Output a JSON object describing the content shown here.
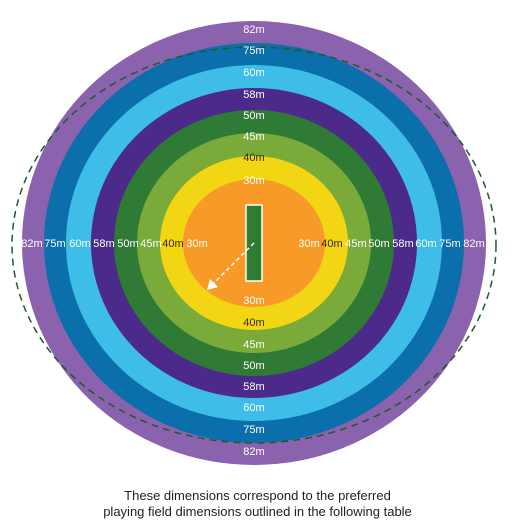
{
  "diagram": {
    "rings": [
      {
        "label": "82m",
        "color": "#8b62ad"
      },
      {
        "label": "75m",
        "color": "#0a6faa"
      },
      {
        "label": "60m",
        "color": "#3dbde8"
      },
      {
        "label": "58m",
        "color": "#4b2a8a"
      },
      {
        "label": "50m",
        "color": "#2f7a35"
      },
      {
        "label": "45m",
        "color": "#7aaa3a"
      },
      {
        "label": "40m",
        "color": "#f2d513"
      },
      {
        "label": "30m",
        "color": "#f79a27"
      }
    ],
    "pitch_color": "#2e7d32",
    "boundary_style": "dashed",
    "arrow_style": "dashed"
  },
  "caption": {
    "line1": "These dimensions correspond to the preferred",
    "line2": "playing field dimensions outlined in the following table"
  }
}
